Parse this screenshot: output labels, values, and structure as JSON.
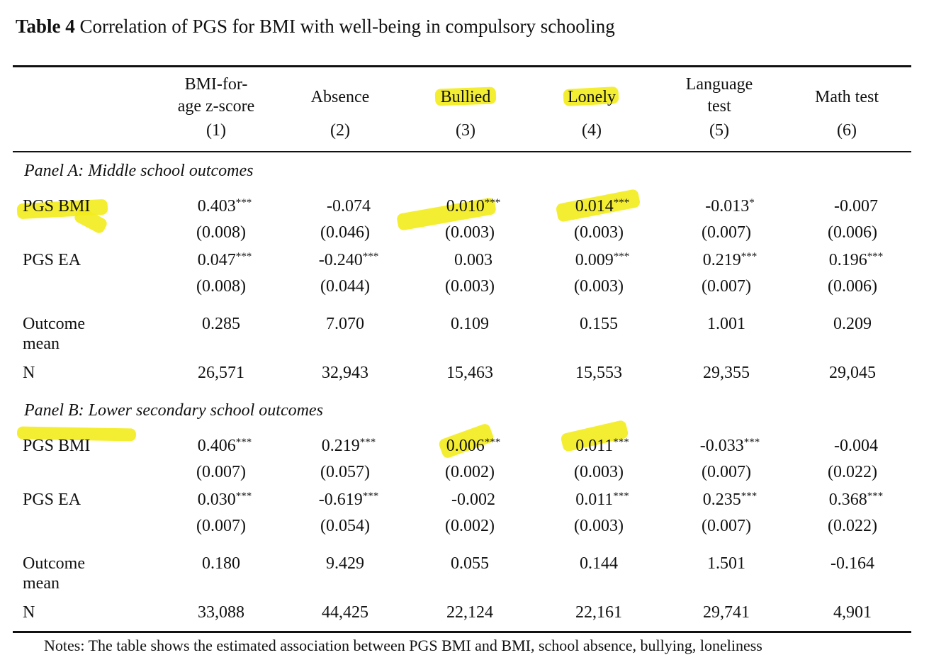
{
  "caption": {
    "lead": "Table 4",
    "text": "Correlation of PGS for BMI with well-being in compulsory schooling"
  },
  "columns": [
    {
      "name": "BMI-for-age z-score",
      "line1": "BMI-for-",
      "line2": "age z-score",
      "num": "(1)"
    },
    {
      "name": "Absence",
      "line1": "",
      "line2": "Absence",
      "num": "(2)"
    },
    {
      "name": "Bullied",
      "line1": "",
      "line2": "Bullied",
      "num": "(3)"
    },
    {
      "name": "Lonely",
      "line1": "",
      "line2": "Lonely",
      "num": "(4)"
    },
    {
      "name": "Language test",
      "line1": "Language",
      "line2": "test",
      "num": "(5)"
    },
    {
      "name": "Math test",
      "line1": "",
      "line2": "Math test",
      "num": "(6)"
    }
  ],
  "panel_a": {
    "title": "Panel A: Middle school outcomes",
    "rows": [
      {
        "label": "PGS BMI",
        "coefs": [
          "0.403",
          "-0.074",
          "0.010",
          "0.014",
          "-0.013",
          "-0.007"
        ],
        "stars": [
          "***",
          "",
          "***",
          "***",
          "*",
          ""
        ],
        "ses": [
          "(0.008)",
          "(0.046)",
          "(0.003)",
          "(0.003)",
          "(0.007)",
          "(0.006)"
        ]
      },
      {
        "label": "PGS EA",
        "coefs": [
          "0.047",
          "-0.240",
          "0.003",
          "0.009",
          "0.219",
          "0.196"
        ],
        "stars": [
          "***",
          "***",
          "",
          "***",
          "***",
          "***"
        ],
        "ses": [
          "(0.008)",
          "(0.044)",
          "(0.003)",
          "(0.003)",
          "(0.007)",
          "(0.006)"
        ]
      }
    ],
    "outcome_mean": {
      "label1": "Outcome",
      "label2": "mean",
      "values": [
        "0.285",
        "7.070",
        "0.109",
        "0.155",
        "1.001",
        "0.209"
      ]
    },
    "n": {
      "label": "N",
      "values": [
        "26,571",
        "32,943",
        "15,463",
        "15,553",
        "29,355",
        "29,045"
      ]
    }
  },
  "panel_b": {
    "title": "Panel B: Lower secondary school outcomes",
    "rows": [
      {
        "label": "PGS BMI",
        "coefs": [
          "0.406",
          "0.219",
          "0.006",
          "0.011",
          "-0.033",
          "-0.004"
        ],
        "stars": [
          "***",
          "***",
          "***",
          "***",
          "***",
          ""
        ],
        "ses": [
          "(0.007)",
          "(0.057)",
          "(0.002)",
          "(0.003)",
          "(0.007)",
          "(0.022)"
        ]
      },
      {
        "label": "PGS EA",
        "coefs": [
          "0.030",
          "-0.619",
          "-0.002",
          "0.011",
          "0.235",
          "0.368"
        ],
        "stars": [
          "***",
          "***",
          "",
          "***",
          "***",
          "***"
        ],
        "ses": [
          "(0.007)",
          "(0.054)",
          "(0.002)",
          "(0.003)",
          "(0.007)",
          "(0.022)"
        ]
      }
    ],
    "outcome_mean": {
      "label1": "Outcome",
      "label2": "mean",
      "values": [
        "0.180",
        "9.429",
        "0.055",
        "0.144",
        "1.501",
        "-0.164"
      ]
    },
    "n": {
      "label": "N",
      "values": [
        "33,088",
        "44,425",
        "22,124",
        "22,161",
        "29,741",
        "4,901"
      ]
    }
  },
  "notes": "Notes: The table shows the estimated association between PGS BMI and BMI, school absence, bullying, loneliness",
  "highlight_color": "#f3ec1c"
}
